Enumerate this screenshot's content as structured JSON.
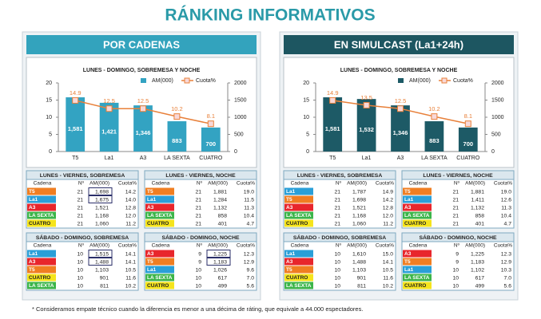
{
  "title": "RÁNKING INFORMATIVOS",
  "chart_data": [
    {
      "type": "bar",
      "title": "LUNES - DOMINGO, SOBREMESA  Y NOCHE",
      "categories": [
        "T5",
        "La1",
        "A3",
        "LA SEXTA",
        "CUATRO"
      ],
      "series": [
        {
          "name": "AM(000)",
          "type": "bar",
          "axis": "y2",
          "color": "#33a3c2",
          "values": [
            1581,
            1421,
            1346,
            883,
            700
          ],
          "value_labels": [
            "1,581",
            "1,421",
            "1,346",
            "883",
            "700"
          ]
        },
        {
          "name": "Cuota%",
          "type": "line",
          "color": "#e8803a",
          "values": [
            14.9,
            12.5,
            12.5,
            10.2,
            8.1
          ]
        }
      ],
      "ylim": [
        0,
        20
      ],
      "yticks": [
        0,
        5,
        10,
        15,
        20
      ],
      "y2lim": [
        0,
        2000
      ],
      "y2ticks": [
        0,
        500,
        1000,
        1500,
        2000
      ]
    },
    {
      "type": "bar",
      "title": "LUNES - DOMINGO, SOBREMESA  Y NOCHE",
      "categories": [
        "T5",
        "La1",
        "A3",
        "LA SEXTA",
        "CUATRO"
      ],
      "series": [
        {
          "name": "AM(000)",
          "type": "bar",
          "axis": "y2",
          "color": "#1d5a66",
          "values": [
            1581,
            1532,
            1346,
            883,
            700
          ],
          "value_labels": [
            "1,581",
            "1,532",
            "1,346",
            "883",
            "700"
          ]
        },
        {
          "name": "Cuota%",
          "type": "line",
          "color": "#e8803a",
          "values": [
            14.9,
            13.5,
            12.5,
            10.2,
            8.1
          ]
        }
      ],
      "ylim": [
        0,
        20
      ],
      "yticks": [
        0,
        5,
        10,
        15,
        20
      ],
      "y2lim": [
        0,
        2000
      ],
      "y2ticks": [
        0,
        500,
        1000,
        1500,
        2000
      ]
    }
  ],
  "panels": [
    {
      "heading": "POR CADENAS",
      "color": "#33a3bd",
      "tables": [
        {
          "title": "LUNES - VIERNES, SOBREMESA",
          "columns": [
            "Cadena",
            "Nº",
            "AM(000)",
            "Cuota%"
          ],
          "rows": [
            {
              "cells": [
                "T5",
                "21",
                "1,698",
                "14.2"
              ],
              "color": "#f07e22",
              "tie": true
            },
            {
              "cells": [
                "La1",
                "21",
                "1,675",
                "14.0"
              ],
              "color": "#2a9fd8",
              "tie": true
            },
            {
              "cells": [
                "A3",
                "21",
                "1,521",
                "12.8"
              ],
              "color": "#e8262c"
            },
            {
              "cells": [
                "LA SEXTA",
                "21",
                "1,168",
                "12.0"
              ],
              "color": "#3cb54a"
            },
            {
              "cells": [
                "CUATRO",
                "21",
                "1,060",
                "11.2"
              ],
              "color": "#f5e41c"
            }
          ]
        },
        {
          "title": "LUNES - VIERNES, NOCHE",
          "columns": [
            "Cadena",
            "Nº",
            "AM(000)",
            "Cuota%"
          ],
          "rows": [
            {
              "cells": [
                "T5",
                "21",
                "1,881",
                "19.0"
              ],
              "color": "#f07e22"
            },
            {
              "cells": [
                "La1",
                "21",
                "1,284",
                "11.5"
              ],
              "color": "#2a9fd8"
            },
            {
              "cells": [
                "A3",
                "21",
                "1,132",
                "11.3"
              ],
              "color": "#e8262c"
            },
            {
              "cells": [
                "LA SEXTA",
                "21",
                "858",
                "10.4"
              ],
              "color": "#3cb54a"
            },
            {
              "cells": [
                "CUATRO",
                "21",
                "401",
                "4.7"
              ],
              "color": "#f5e41c"
            }
          ]
        },
        {
          "title": "SÁBADO - DOMINGO, SOBREMESA",
          "columns": [
            "Cadena",
            "Nº",
            "AM(000)",
            "Cuota%"
          ],
          "rows": [
            {
              "cells": [
                "La1",
                "10",
                "1,515",
                "14.1"
              ],
              "color": "#2a9fd8",
              "tie": true
            },
            {
              "cells": [
                "A3",
                "10",
                "1,488",
                "14.1"
              ],
              "color": "#e8262c",
              "tie": true
            },
            {
              "cells": [
                "T5",
                "10",
                "1,103",
                "10.5"
              ],
              "color": "#f07e22"
            },
            {
              "cells": [
                "CUATRO",
                "10",
                "901",
                "11.6"
              ],
              "color": "#f5e41c"
            },
            {
              "cells": [
                "LA SEXTA",
                "10",
                "811",
                "10.2"
              ],
              "color": "#3cb54a"
            }
          ]
        },
        {
          "title": "SÁBADO - DOMINGO, NOCHE",
          "columns": [
            "Cadena",
            "Nº",
            "AM(000)",
            "Cuota%"
          ],
          "rows": [
            {
              "cells": [
                "A3",
                "9",
                "1,225",
                "12.3"
              ],
              "color": "#e8262c",
              "tie": true
            },
            {
              "cells": [
                "T5",
                "9",
                "1,183",
                "12.9"
              ],
              "color": "#f07e22",
              "tie": true
            },
            {
              "cells": [
                "La1",
                "10",
                "1,026",
                "9.6"
              ],
              "color": "#2a9fd8"
            },
            {
              "cells": [
                "LA SEXTA",
                "10",
                "617",
                "7.0"
              ],
              "color": "#3cb54a"
            },
            {
              "cells": [
                "CUATRO",
                "10",
                "499",
                "5.6"
              ],
              "color": "#f5e41c"
            }
          ]
        }
      ]
    },
    {
      "heading": "EN SIMULCAST (La1+24h)",
      "color": "#1d5661",
      "tables": [
        {
          "title": "LUNES - VIERNES, SOBREMESA",
          "columns": [
            "Cadena",
            "Nº",
            "AM(000)",
            "Cuota%"
          ],
          "rows": [
            {
              "cells": [
                "La1",
                "21",
                "1,787",
                "14.9"
              ],
              "color": "#2a9fd8"
            },
            {
              "cells": [
                "T5",
                "21",
                "1,698",
                "14.2"
              ],
              "color": "#f07e22"
            },
            {
              "cells": [
                "A3",
                "21",
                "1,521",
                "12.8"
              ],
              "color": "#e8262c"
            },
            {
              "cells": [
                "LA SEXTA",
                "21",
                "1,168",
                "12.0"
              ],
              "color": "#3cb54a"
            },
            {
              "cells": [
                "CUATRO",
                "21",
                "1,060",
                "11.2"
              ],
              "color": "#f5e41c"
            }
          ]
        },
        {
          "title": "LUNES - VIERNES, NOCHE",
          "columns": [
            "Cadena",
            "Nº",
            "AM(000)",
            "Cuota%"
          ],
          "rows": [
            {
              "cells": [
                "T5",
                "21",
                "1,881",
                "19.0"
              ],
              "color": "#f07e22"
            },
            {
              "cells": [
                "La1",
                "21",
                "1,411",
                "12.6"
              ],
              "color": "#2a9fd8"
            },
            {
              "cells": [
                "A3",
                "21",
                "1,132",
                "11.3"
              ],
              "color": "#e8262c"
            },
            {
              "cells": [
                "LA SEXTA",
                "21",
                "858",
                "10.4"
              ],
              "color": "#3cb54a"
            },
            {
              "cells": [
                "CUATRO",
                "21",
                "401",
                "4.7"
              ],
              "color": "#f5e41c"
            }
          ]
        },
        {
          "title": "SÁBADO - DOMINGO, SOBREMESA",
          "columns": [
            "Cadena",
            "Nº",
            "AM(000)",
            "Cuota%"
          ],
          "rows": [
            {
              "cells": [
                "La1",
                "10",
                "1,610",
                "15.0"
              ],
              "color": "#2a9fd8"
            },
            {
              "cells": [
                "A3",
                "10",
                "1,488",
                "14.1"
              ],
              "color": "#e8262c"
            },
            {
              "cells": [
                "T5",
                "10",
                "1,103",
                "10.5"
              ],
              "color": "#f07e22"
            },
            {
              "cells": [
                "CUATRO",
                "10",
                "901",
                "11.6"
              ],
              "color": "#f5e41c"
            },
            {
              "cells": [
                "LA SEXTA",
                "10",
                "811",
                "10.2"
              ],
              "color": "#3cb54a"
            }
          ]
        },
        {
          "title": "SÁBADO - DOMINGO, NOCHE",
          "columns": [
            "Cadena",
            "Nº",
            "AM(000)",
            "Cuota%"
          ],
          "rows": [
            {
              "cells": [
                "A3",
                "9",
                "1,225",
                "12.3"
              ],
              "color": "#e8262c"
            },
            {
              "cells": [
                "T5",
                "9",
                "1,183",
                "12.9"
              ],
              "color": "#f07e22"
            },
            {
              "cells": [
                "La1",
                "10",
                "1,102",
                "10.3"
              ],
              "color": "#2a9fd8"
            },
            {
              "cells": [
                "LA SEXTA",
                "10",
                "617",
                "7.0"
              ],
              "color": "#3cb54a"
            },
            {
              "cells": [
                "CUATRO",
                "10",
                "499",
                "5.6"
              ],
              "color": "#f5e41c"
            }
          ]
        }
      ]
    }
  ],
  "footnote": "* Consideramos empate técnico cuando la diferencia es menor a una décima de ráting, que equivale a 44.000 espectadores."
}
